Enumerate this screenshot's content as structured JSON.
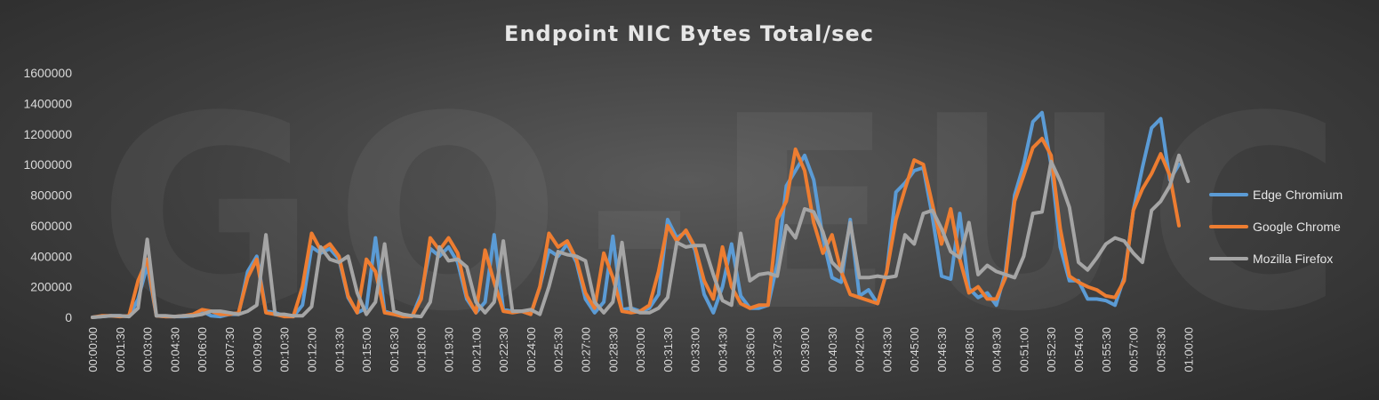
{
  "chart_data": {
    "type": "line",
    "title": "Endpoint NIC Bytes Total/sec",
    "watermark": "GO-EUC",
    "xlabel": "",
    "ylabel": "",
    "ylim": [
      0,
      1600000
    ],
    "yticks": [
      0,
      200000,
      400000,
      600000,
      800000,
      1000000,
      1200000,
      1400000,
      1600000
    ],
    "grid": false,
    "legend_position": "right",
    "x_tick_labels": [
      "00:00:00",
      "00:01:30",
      "00:03:00",
      "00:04:30",
      "00:06:00",
      "00:07:30",
      "00:09:00",
      "00:10:30",
      "00:12:00",
      "00:13:30",
      "00:15:00",
      "00:16:30",
      "00:18:00",
      "00:19:30",
      "00:21:00",
      "00:22:30",
      "00:24:00",
      "00:25:30",
      "00:27:00",
      "00:28:30",
      "00:30:00",
      "00:31:30",
      "00:33:00",
      "00:34:30",
      "00:36:00",
      "00:37:30",
      "00:39:00",
      "00:40:30",
      "00:42:00",
      "00:43:30",
      "00:45:00",
      "00:46:30",
      "00:48:00",
      "00:49:30",
      "00:51:00",
      "00:52:30",
      "00:54:00",
      "00:55:30",
      "00:57:00",
      "00:58:30",
      "01:00:00"
    ],
    "x_interval_seconds": 30,
    "series": [
      {
        "name": "Edge Chromium",
        "color": "#5b9bd5",
        "values": [
          0,
          5000,
          10000,
          10000,
          5000,
          120000,
          340000,
          10000,
          5000,
          5000,
          5000,
          10000,
          40000,
          10000,
          5000,
          20000,
          20000,
          300000,
          400000,
          40000,
          30000,
          10000,
          5000,
          80000,
          460000,
          420000,
          450000,
          380000,
          130000,
          30000,
          60000,
          520000,
          40000,
          20000,
          5000,
          5000,
          150000,
          450000,
          400000,
          460000,
          360000,
          120000,
          30000,
          100000,
          540000,
          50000,
          40000,
          40000,
          20000,
          200000,
          440000,
          400000,
          480000,
          360000,
          120000,
          30000,
          100000,
          530000,
          50000,
          60000,
          40000,
          60000,
          150000,
          640000,
          520000,
          560000,
          440000,
          150000,
          30000,
          200000,
          480000,
          140000,
          60000,
          60000,
          80000,
          350000,
          860000,
          960000,
          1060000,
          900000,
          520000,
          260000,
          230000,
          640000,
          140000,
          180000,
          90000,
          300000,
          820000,
          880000,
          960000,
          980000,
          660000,
          270000,
          250000,
          680000,
          190000,
          130000,
          160000,
          80000,
          300000,
          800000,
          1000000,
          1280000,
          1340000,
          1000000,
          460000,
          240000,
          240000,
          120000,
          120000,
          110000,
          80000,
          260000,
          700000,
          980000,
          1240000,
          1300000,
          900000,
          1000000
        ]
      },
      {
        "name": "Google Chrome",
        "color": "#ed7d31",
        "values": [
          0,
          10000,
          10000,
          5000,
          10000,
          240000,
          380000,
          10000,
          5000,
          5000,
          10000,
          20000,
          50000,
          40000,
          20000,
          20000,
          30000,
          260000,
          380000,
          30000,
          20000,
          5000,
          5000,
          200000,
          550000,
          440000,
          480000,
          400000,
          140000,
          30000,
          380000,
          300000,
          30000,
          20000,
          5000,
          5000,
          120000,
          520000,
          440000,
          520000,
          420000,
          140000,
          30000,
          440000,
          230000,
          40000,
          30000,
          40000,
          20000,
          200000,
          550000,
          460000,
          500000,
          380000,
          160000,
          60000,
          420000,
          260000,
          40000,
          30000,
          40000,
          80000,
          300000,
          600000,
          500000,
          570000,
          460000,
          240000,
          120000,
          460000,
          200000,
          90000,
          60000,
          80000,
          80000,
          640000,
          760000,
          1100000,
          960000,
          620000,
          420000,
          540000,
          300000,
          150000,
          130000,
          110000,
          90000,
          300000,
          640000,
          840000,
          1030000,
          1000000,
          740000,
          480000,
          710000,
          380000,
          160000,
          200000,
          120000,
          120000,
          260000,
          760000,
          930000,
          1110000,
          1170000,
          1060000,
          580000,
          270000,
          230000,
          200000,
          180000,
          140000,
          130000,
          240000,
          700000,
          840000,
          940000,
          1070000,
          930000,
          600000
        ]
      },
      {
        "name": "Mozilla Firefox",
        "color": "#a5a5a5",
        "values": [
          0,
          5000,
          10000,
          10000,
          5000,
          60000,
          510000,
          10000,
          10000,
          5000,
          10000,
          10000,
          20000,
          40000,
          40000,
          30000,
          20000,
          40000,
          80000,
          540000,
          20000,
          20000,
          10000,
          10000,
          70000,
          460000,
          380000,
          360000,
          400000,
          160000,
          20000,
          100000,
          480000,
          40000,
          20000,
          10000,
          5000,
          100000,
          460000,
          370000,
          380000,
          330000,
          100000,
          30000,
          100000,
          500000,
          40000,
          40000,
          50000,
          20000,
          200000,
          430000,
          410000,
          400000,
          370000,
          100000,
          30000,
          100000,
          490000,
          50000,
          30000,
          30000,
          60000,
          130000,
          490000,
          460000,
          470000,
          470000,
          280000,
          110000,
          80000,
          550000,
          240000,
          280000,
          290000,
          270000,
          600000,
          520000,
          710000,
          690000,
          560000,
          360000,
          300000,
          620000,
          260000,
          260000,
          270000,
          260000,
          270000,
          540000,
          480000,
          680000,
          700000,
          580000,
          430000,
          390000,
          620000,
          280000,
          340000,
          300000,
          280000,
          260000,
          400000,
          680000,
          690000,
          1020000,
          890000,
          720000,
          360000,
          310000,
          390000,
          480000,
          520000,
          500000,
          420000,
          360000,
          700000,
          760000,
          860000,
          1060000,
          890000
        ]
      }
    ]
  }
}
